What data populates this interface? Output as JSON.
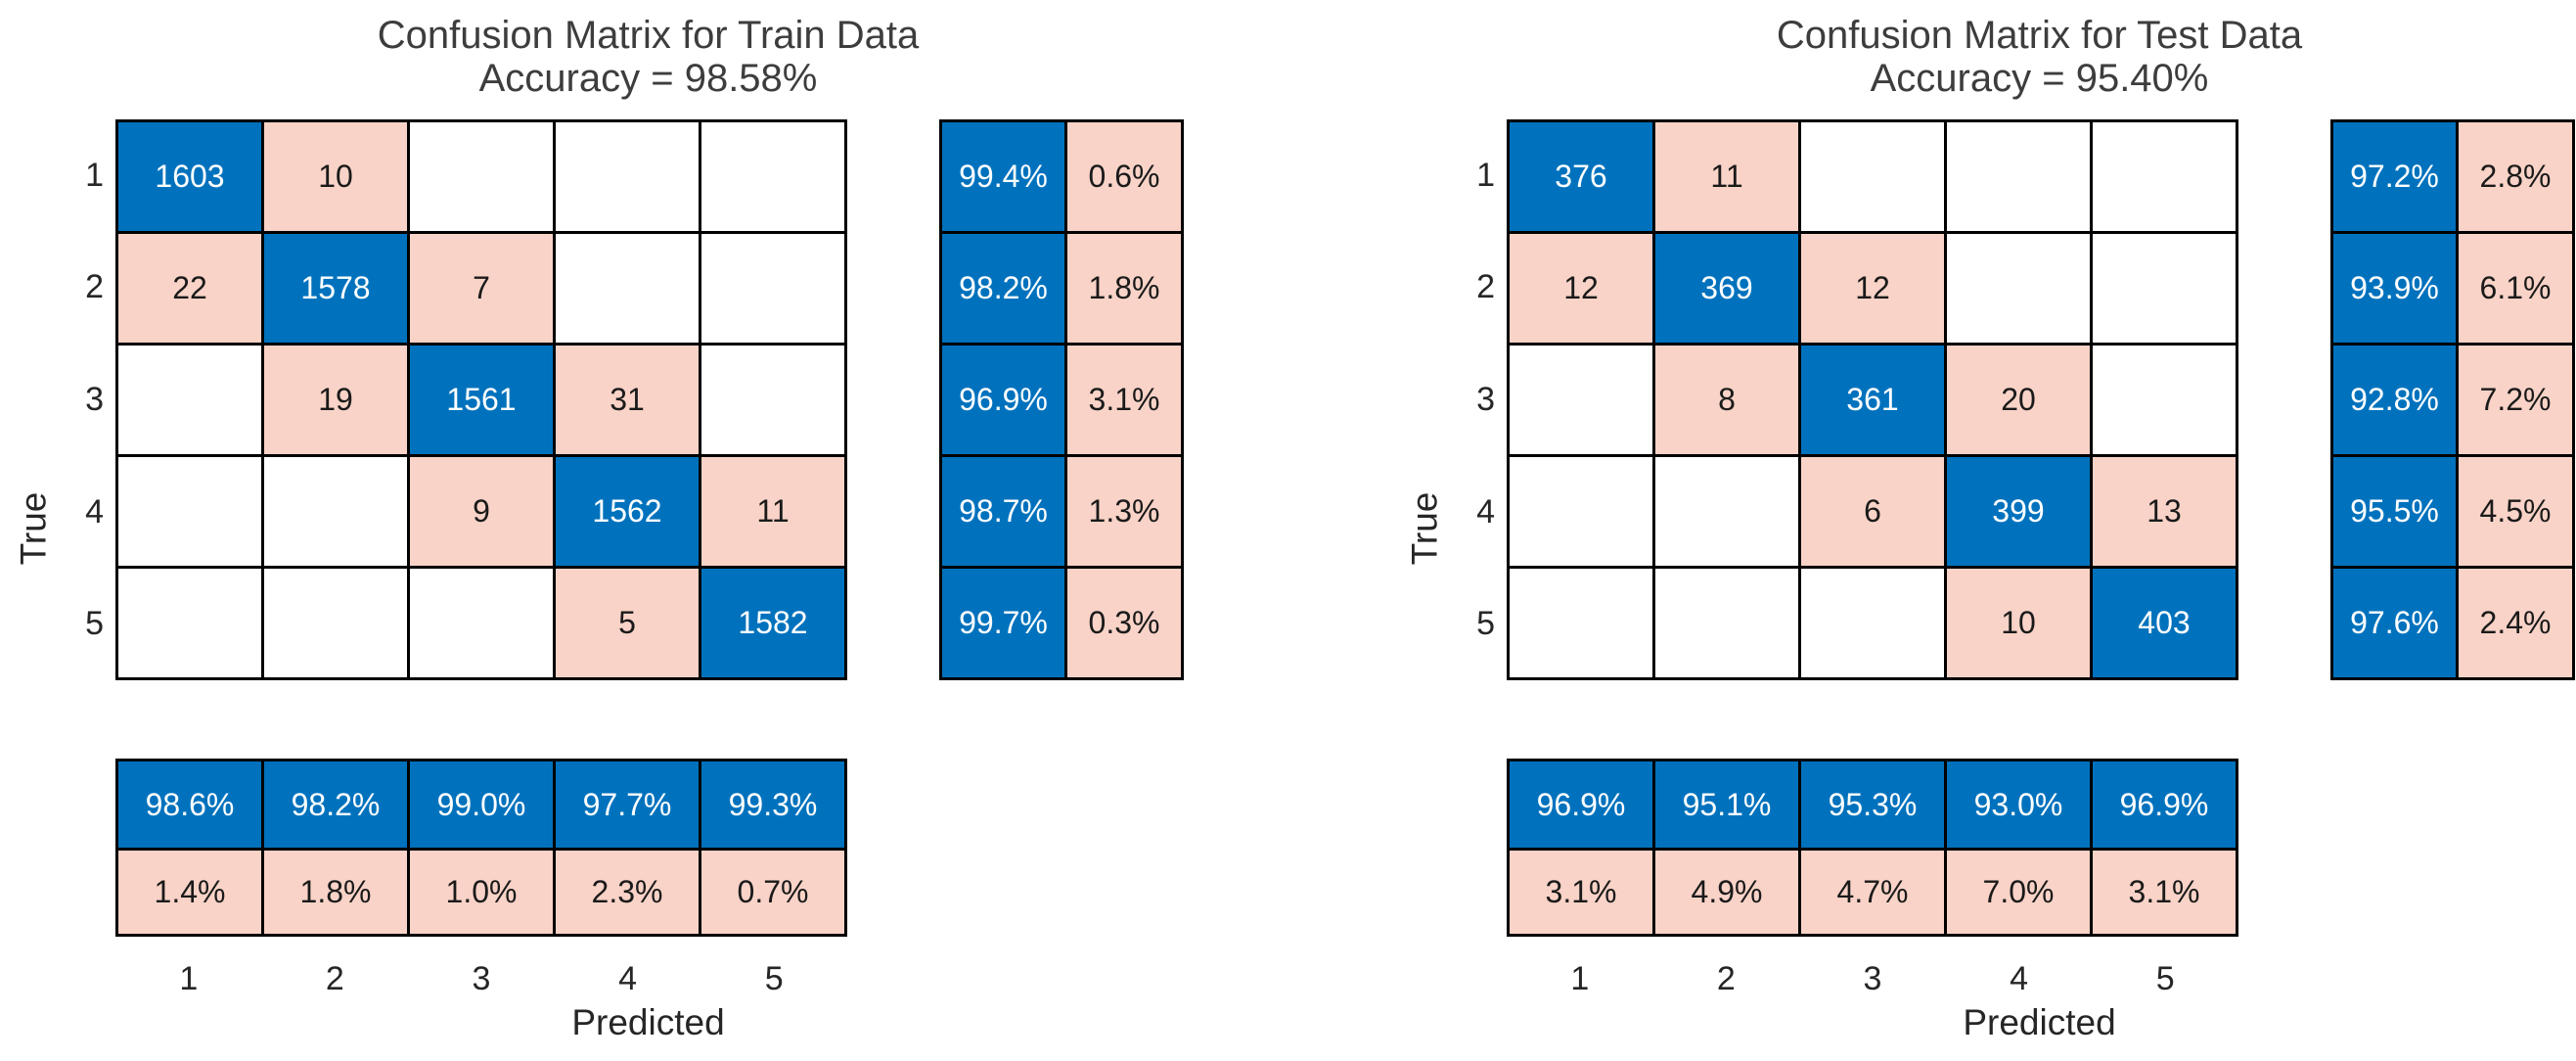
{
  "colors": {
    "figure_bg": "#FFFFFF",
    "diagonal_fill": "#0072BD",
    "offdiagonal_fill": "#F9D3C7",
    "empty_fill": "#FFFFFF",
    "grid_line": "#000000",
    "diagonal_text": "#FFFFFF",
    "offdiagonal_text": "#1A1A1A",
    "label_text": "#262626",
    "title_text": "#3D3D3D"
  },
  "chart_data": [
    {
      "type": "heatmap",
      "panel": "train",
      "title": "Confusion Matrix for Train Data",
      "subtitle": "Accuracy = 98.58%",
      "accuracy_pct": 98.58,
      "xlabel": "Predicted",
      "ylabel": "True",
      "classes": [
        "1",
        "2",
        "3",
        "4",
        "5"
      ],
      "values": [
        [
          1603,
          10,
          0,
          0,
          0
        ],
        [
          22,
          1578,
          7,
          0,
          0
        ],
        [
          0,
          19,
          1561,
          31,
          0
        ],
        [
          0,
          0,
          9,
          1562,
          11
        ],
        [
          0,
          0,
          0,
          5,
          1582
        ]
      ],
      "display_matrix": [
        [
          "1603",
          "10",
          "",
          "",
          ""
        ],
        [
          "22",
          "1578",
          "7",
          "",
          ""
        ],
        [
          "",
          "19",
          "1561",
          "31",
          ""
        ],
        [
          "",
          "",
          "9",
          "1562",
          "11"
        ],
        [
          "",
          "",
          "",
          "5",
          "1582"
        ]
      ],
      "row_summary": [
        [
          "99.4%",
          "0.6%"
        ],
        [
          "98.2%",
          "1.8%"
        ],
        [
          "96.9%",
          "3.1%"
        ],
        [
          "98.7%",
          "1.3%"
        ],
        [
          "99.7%",
          "0.3%"
        ]
      ],
      "col_summary": [
        [
          "98.6%",
          "98.2%",
          "99.0%",
          "97.7%",
          "99.3%"
        ],
        [
          "1.4%",
          "1.8%",
          "1.0%",
          "2.3%",
          "0.7%"
        ]
      ]
    },
    {
      "type": "heatmap",
      "panel": "test",
      "title": "Confusion Matrix for Test Data",
      "subtitle": "Accuracy = 95.40%",
      "accuracy_pct": 95.4,
      "xlabel": "Predicted",
      "ylabel": "True",
      "classes": [
        "1",
        "2",
        "3",
        "4",
        "5"
      ],
      "values": [
        [
          376,
          11,
          0,
          0,
          0
        ],
        [
          12,
          369,
          12,
          0,
          0
        ],
        [
          0,
          8,
          361,
          20,
          0
        ],
        [
          0,
          0,
          6,
          399,
          13
        ],
        [
          0,
          0,
          0,
          10,
          403
        ]
      ],
      "display_matrix": [
        [
          "376",
          "11",
          "",
          "",
          ""
        ],
        [
          "12",
          "369",
          "12",
          "",
          ""
        ],
        [
          "",
          "8",
          "361",
          "20",
          ""
        ],
        [
          "",
          "",
          "6",
          "399",
          "13"
        ],
        [
          "",
          "",
          "",
          "10",
          "403"
        ]
      ],
      "row_summary": [
        [
          "97.2%",
          "2.8%"
        ],
        [
          "93.9%",
          "6.1%"
        ],
        [
          "92.8%",
          "7.2%"
        ],
        [
          "95.5%",
          "4.5%"
        ],
        [
          "97.6%",
          "2.4%"
        ]
      ],
      "col_summary": [
        [
          "96.9%",
          "95.1%",
          "95.3%",
          "93.0%",
          "96.9%"
        ],
        [
          "3.1%",
          "4.9%",
          "4.7%",
          "7.0%",
          "3.1%"
        ]
      ]
    }
  ]
}
